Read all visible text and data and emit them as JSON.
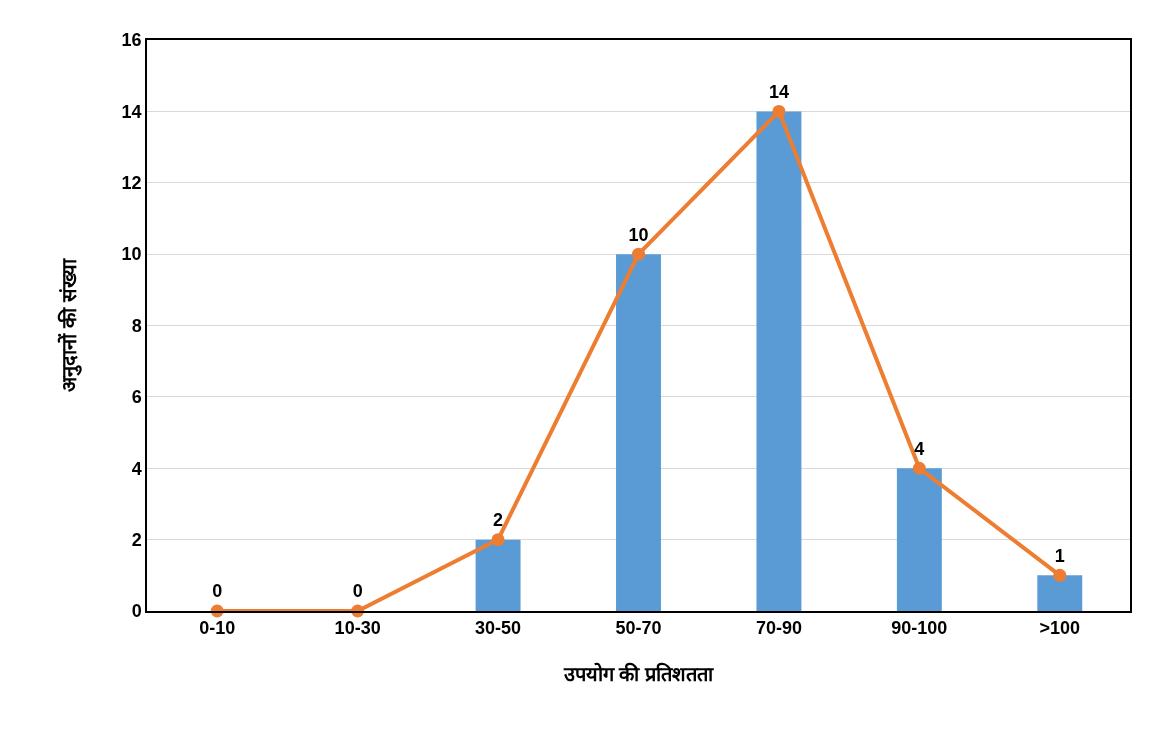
{
  "chart_data": {
    "type": "bar",
    "xlabel": "उपयोग की प्रतिशतता",
    "ylabel": "अनुदानों की संख्या",
    "categories": [
      "0-10",
      "10-30",
      "30-50",
      "50-70",
      "70-90",
      "90-100",
      ">100"
    ],
    "series": [
      {
        "color": "#5b9bd5",
        "values": [
          0,
          0,
          2,
          10,
          14,
          4,
          1
        ]
      },
      {
        "type": "line",
        "color": "#ed7d31",
        "values": [
          0,
          0,
          2,
          10,
          14,
          4,
          1
        ],
        "value_labels": [
          "0",
          "0",
          "2",
          "10",
          "14",
          "4",
          "1"
        ]
      }
    ],
    "ylim": [
      0,
      16
    ],
    "yticks": [
      0,
      2,
      4,
      6,
      8,
      10,
      12,
      14,
      16
    ],
    "grid": "y",
    "legend": false,
    "marker": "circle",
    "line_style": "solid"
  }
}
